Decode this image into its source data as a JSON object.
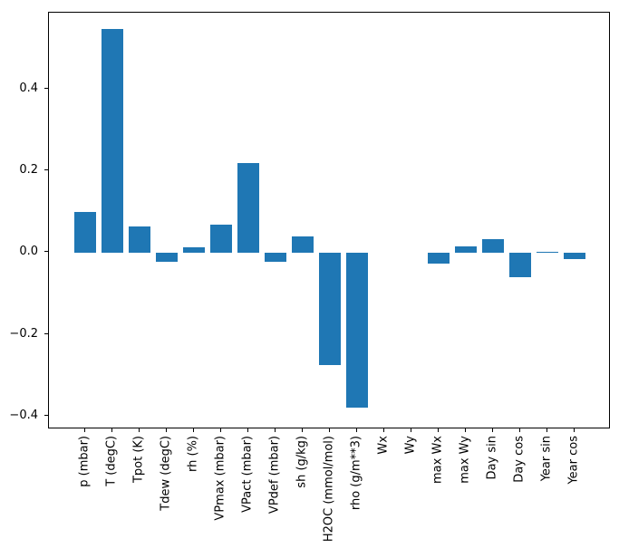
{
  "chart_data": {
    "type": "bar",
    "title": "",
    "xlabel": "",
    "ylabel": "",
    "categories": [
      "p (mbar)",
      "T (degC)",
      "Tpot (K)",
      "Tdew (degC)",
      "rh (%)",
      "VPmax (mbar)",
      "VPact (mbar)",
      "VPdef (mbar)",
      "sh (g/kg)",
      "H2OC (mmol/mol)",
      "rho (g/m**3)",
      "Wx",
      "Wy",
      "max Wx",
      "max Wy",
      "Day sin",
      "Day cos",
      "Year sin",
      "Year cos"
    ],
    "values": [
      0.1,
      0.547,
      0.065,
      -0.022,
      0.013,
      0.068,
      0.219,
      -0.023,
      0.039,
      -0.275,
      -0.378,
      0.0,
      0.0,
      -0.026,
      0.016,
      0.033,
      -0.059,
      0.003,
      -0.016
    ],
    "yticks": [
      0.4,
      0.2,
      0.0,
      -0.2,
      -0.4
    ],
    "ytick_labels": [
      "0.4",
      "0.2",
      "0.0",
      "−0.2",
      "−0.4"
    ],
    "ylim": [
      -0.432,
      0.587
    ],
    "bar_color": "#1f77b4",
    "grid": "off",
    "legend": "none"
  }
}
